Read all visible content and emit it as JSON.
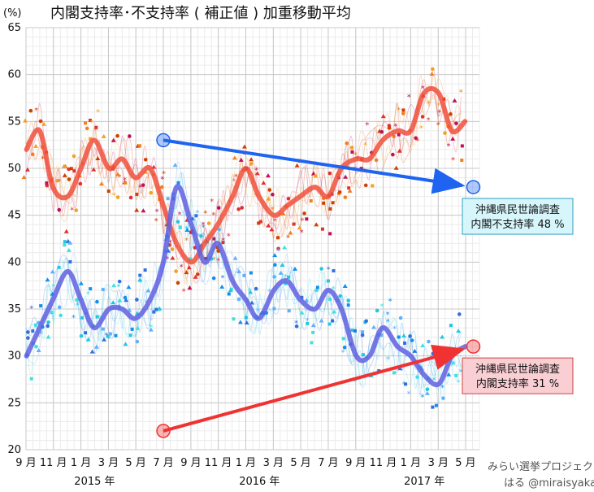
{
  "chart_data": {
    "type": "line",
    "title": "内閣支持率･不支持率 ( 補正値 ) 加重移動平均",
    "ylabel": "(%)",
    "ylim": [
      20,
      65
    ],
    "yticks": [
      "20",
      "25",
      "30",
      "35",
      "40",
      "45",
      "50",
      "55",
      "60",
      "65"
    ],
    "xlim": [
      2014.667,
      2017.417
    ],
    "grid": true,
    "xticks": [
      {
        "x": 2014.667,
        "label": "9 月"
      },
      {
        "x": 2014.833,
        "label": "11 月"
      },
      {
        "x": 2015.0,
        "label": "1 月"
      },
      {
        "x": 2015.167,
        "label": "3 月"
      },
      {
        "x": 2015.333,
        "label": "5 月"
      },
      {
        "x": 2015.5,
        "label": "7 月"
      },
      {
        "x": 2015.667,
        "label": "9 月"
      },
      {
        "x": 2015.833,
        "label": "11 月"
      },
      {
        "x": 2016.0,
        "label": "1 月"
      },
      {
        "x": 2016.167,
        "label": "3 月"
      },
      {
        "x": 2016.333,
        "label": "5 月"
      },
      {
        "x": 2016.5,
        "label": "7 月"
      },
      {
        "x": 2016.667,
        "label": "9 月"
      },
      {
        "x": 2016.833,
        "label": "11 月"
      },
      {
        "x": 2017.0,
        "label": "1 月"
      },
      {
        "x": 2017.167,
        "label": "3 月"
      },
      {
        "x": 2017.333,
        "label": "5 月"
      }
    ],
    "years": [
      {
        "x": 2015.083,
        "label": "2015 年"
      },
      {
        "x": 2016.083,
        "label": "2016 年"
      },
      {
        "x": 2017.083,
        "label": "2017 年"
      }
    ],
    "series": [
      {
        "role": "disapproval",
        "color": "#f0503c",
        "x": [
          2014.67,
          2014.75,
          2014.83,
          2014.92,
          2015.0,
          2015.08,
          2015.17,
          2015.25,
          2015.33,
          2015.42,
          2015.5,
          2015.58,
          2015.67,
          2015.75,
          2015.83,
          2015.92,
          2016.0,
          2016.08,
          2016.17,
          2016.25,
          2016.33,
          2016.42,
          2016.5,
          2016.58,
          2016.67,
          2016.75,
          2016.83,
          2016.92,
          2017.0,
          2017.08,
          2017.17,
          2017.25,
          2017.33
        ],
        "values": [
          52,
          54,
          48,
          47,
          50,
          53,
          50,
          51,
          49,
          50,
          46,
          42,
          40,
          42,
          44,
          47,
          50,
          47,
          45,
          46,
          47,
          48,
          47,
          50,
          51,
          51,
          53,
          54,
          54,
          58,
          58,
          54,
          55
        ]
      },
      {
        "role": "approval",
        "color": "#6060e0",
        "x": [
          2014.67,
          2014.75,
          2014.83,
          2014.92,
          2015.0,
          2015.08,
          2015.17,
          2015.25,
          2015.33,
          2015.42,
          2015.5,
          2015.58,
          2015.67,
          2015.75,
          2015.83,
          2015.92,
          2016.0,
          2016.08,
          2016.17,
          2016.25,
          2016.33,
          2016.42,
          2016.5,
          2016.58,
          2016.67,
          2016.75,
          2016.83,
          2016.92,
          2017.0,
          2017.08,
          2017.17,
          2017.25,
          2017.33
        ],
        "values": [
          30,
          33,
          36,
          39,
          36,
          33,
          35,
          35,
          34,
          36,
          40,
          48,
          44,
          40,
          42,
          38,
          36,
          34,
          37,
          38,
          36,
          35,
          37,
          35,
          30,
          30,
          33,
          31,
          30,
          28,
          27,
          30,
          31
        ]
      }
    ],
    "annotations": [
      {
        "line1": "沖縄県民世論調査",
        "line2": "内閣不支持率 48 %",
        "color": "#1e64f0",
        "from": [
          2015.5,
          53
        ],
        "to": [
          2017.38,
          48
        ]
      },
      {
        "line1": "沖縄県民世論調査",
        "line2": "内閣支持率 31 %",
        "color": "#f03232",
        "from": [
          2015.5,
          22
        ],
        "to": [
          2017.38,
          31
        ]
      }
    ],
    "credit_line1": "みらい選挙プロジェクト",
    "credit_line2": "はる @miraisyakai"
  }
}
